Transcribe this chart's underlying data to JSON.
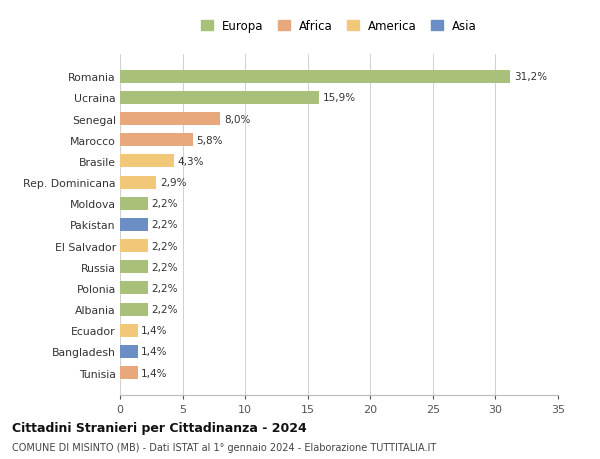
{
  "categories": [
    "Romania",
    "Ucraina",
    "Senegal",
    "Marocco",
    "Brasile",
    "Rep. Dominicana",
    "Moldova",
    "Pakistan",
    "El Salvador",
    "Russia",
    "Polonia",
    "Albania",
    "Ecuador",
    "Bangladesh",
    "Tunisia"
  ],
  "values": [
    31.2,
    15.9,
    8.0,
    5.8,
    4.3,
    2.9,
    2.2,
    2.2,
    2.2,
    2.2,
    2.2,
    2.2,
    1.4,
    1.4,
    1.4
  ],
  "labels": [
    "31,2%",
    "15,9%",
    "8,0%",
    "5,8%",
    "4,3%",
    "2,9%",
    "2,2%",
    "2,2%",
    "2,2%",
    "2,2%",
    "2,2%",
    "2,2%",
    "1,4%",
    "1,4%",
    "1,4%"
  ],
  "colors": [
    "#a8c07a",
    "#a8c07a",
    "#e8a87c",
    "#e8a87c",
    "#f0c878",
    "#f0c878",
    "#a8c07a",
    "#6b8fc4",
    "#f0c878",
    "#a8c07a",
    "#a8c07a",
    "#a8c07a",
    "#f0c878",
    "#6b8fc4",
    "#e8a87c"
  ],
  "legend_labels": [
    "Europa",
    "Africa",
    "America",
    "Asia"
  ],
  "legend_colors": [
    "#a8c07a",
    "#e8a87c",
    "#f0c878",
    "#6b8fc4"
  ],
  "title": "Cittadini Stranieri per Cittadinanza - 2024",
  "subtitle": "COMUNE DI MISINTO (MB) - Dati ISTAT al 1° gennaio 2024 - Elaborazione TUTTITALIA.IT",
  "xlim": [
    0,
    35
  ],
  "xticks": [
    0,
    5,
    10,
    15,
    20,
    25,
    30,
    35
  ],
  "background_color": "#ffffff",
  "grid_color": "#d0d0d0",
  "bar_height": 0.62
}
